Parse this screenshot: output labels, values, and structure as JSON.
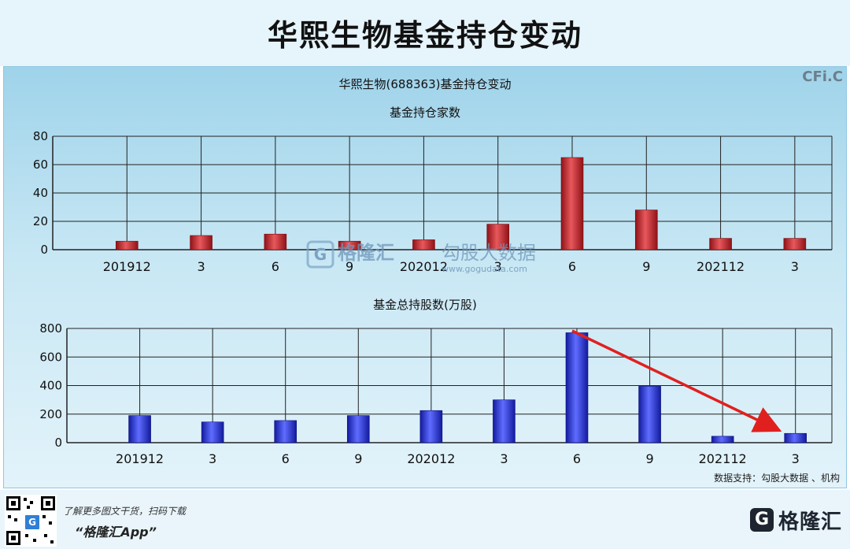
{
  "header": {
    "title": "华熙生物基金持仓变动"
  },
  "brand": "CFi.C",
  "chart_data": [
    {
      "type": "bar",
      "title": "华熙生物(688363)基金持仓变动",
      "subtitle": "基金持仓家数",
      "categories": [
        "201912",
        "3",
        "6",
        "9",
        "202012",
        "3",
        "6",
        "9",
        "202112",
        "3"
      ],
      "values": [
        6,
        10,
        11,
        6,
        7,
        18,
        65,
        28,
        8,
        8
      ],
      "ylim": [
        0,
        80
      ],
      "yticks": [
        0,
        20,
        40,
        60,
        80
      ],
      "grid": true,
      "color": "#c0282d"
    },
    {
      "type": "bar",
      "title": "基金总持股数(万股)",
      "categories": [
        "201912",
        "3",
        "6",
        "9",
        "202012",
        "3",
        "6",
        "9",
        "202112",
        "3"
      ],
      "values": [
        190,
        145,
        155,
        190,
        225,
        300,
        770,
        395,
        45,
        65
      ],
      "ylim": [
        0,
        800
      ],
      "yticks": [
        0,
        200,
        400,
        600,
        800
      ],
      "grid": true,
      "color": "#2a34d6"
    }
  ],
  "watermark": {
    "name": "格隆汇",
    "name2": "勾股大数据",
    "url": "www.gogudata.com"
  },
  "source_note": "数据支持：勾股大数据 、机构",
  "footer": {
    "line1": "了解更多图文干货，扫码下载",
    "line2": "“格隆汇App”",
    "logo_text": "格隆汇",
    "logo_icon": "G"
  }
}
